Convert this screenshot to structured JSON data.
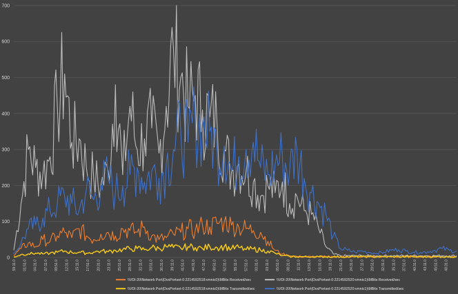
{
  "chart_data": {
    "type": "line",
    "title": "",
    "xlabel": "",
    "ylabel": "",
    "ylim": [
      0,
      700
    ],
    "yticks": [
      0,
      100,
      200,
      300,
      400,
      500,
      600,
      700
    ],
    "grid": true,
    "legend_position": "bottom",
    "background": "#424242",
    "x_tick_labels": [
      "59:11.0",
      "01:51.0",
      "04:31.0",
      "07:11.0",
      "09:51.0",
      "12:31.0",
      "15:11.0",
      "17:51.0",
      "20:31.0",
      "23:11.0",
      "25:51.0",
      "28:31.0",
      "31:11.0",
      "33:51.0",
      "36:31.0",
      "39:11.0",
      "41:51.0",
      "44:31.0",
      "47:11.0",
      "49:51.0",
      "52:31.0",
      "55:11.0",
      "57:51.0",
      "00:31.0",
      "03:11.0",
      "05:51.0",
      "08:31.0",
      "11:11.0",
      "13:51.0",
      "16:31.0",
      "19:11.0",
      "21:51.0",
      "24:31.0",
      "27:11.0",
      "29:51.0",
      "32:31.0",
      "35:11.0",
      "37:51.0",
      "40:31.0",
      "43:11.0",
      "45:51.0",
      "48:31.0"
    ],
    "series": [
      {
        "name": "\\\\VDI-20\\Network Port(DvsPortset-0:2214592518:vmnic0)\\MBits Received/sec",
        "color": "#f07f2f",
        "values": [
          5,
          25,
          40,
          30,
          50,
          45,
          60,
          70,
          55,
          80,
          60,
          50,
          65,
          70,
          60,
          80,
          75,
          70,
          85,
          60,
          50,
          55,
          65,
          70,
          80,
          75,
          90,
          85,
          95,
          100,
          90,
          85,
          80,
          75,
          70,
          45,
          20,
          10,
          5,
          3,
          2,
          2,
          2,
          2,
          2,
          2,
          2,
          2,
          2,
          2,
          2,
          2,
          2,
          2,
          2,
          2,
          2,
          2,
          2,
          2,
          2,
          2
        ]
      },
      {
        "name": "\\\\VDI-20\\Network Port(DvsPortset-0:2214592520:vmnic1)\\MBits Received/sec",
        "color": "#bdbdbd",
        "values": [
          20,
          150,
          300,
          250,
          230,
          280,
          420,
          510,
          320,
          330,
          250,
          220,
          200,
          240,
          480,
          230,
          420,
          300,
          330,
          360,
          290,
          420,
          580,
          500,
          420,
          450,
          410,
          390,
          370,
          300,
          240,
          260,
          240,
          210,
          170,
          200,
          180,
          210,
          150,
          170,
          130,
          120,
          80,
          30,
          10,
          5,
          5,
          5,
          5,
          5,
          5,
          5,
          5,
          5,
          5,
          5,
          5,
          5,
          5,
          5,
          5,
          5
        ]
      },
      {
        "name": "\\\\VDI-20\\Network Port(DvsPortset-0:2214592518:vmnic0)\\MBits Transmitted/sec",
        "color": "#f2c71c",
        "values": [
          2,
          8,
          10,
          12,
          10,
          12,
          15,
          18,
          14,
          15,
          12,
          15,
          18,
          16,
          20,
          22,
          24,
          25,
          22,
          28,
          25,
          30,
          28,
          26,
          30,
          28,
          25,
          30,
          28,
          30,
          25,
          28,
          22,
          24,
          20,
          18,
          12,
          5,
          3,
          2,
          2,
          2,
          2,
          2,
          2,
          2,
          2,
          2,
          2,
          2,
          2,
          2,
          2,
          2,
          2,
          2,
          2,
          2,
          2,
          2,
          2,
          2
        ]
      },
      {
        "name": "\\\\VDI-20\\Network Port(DvsPortset-0:2214592520:vmnic1)\\MBits Transmitted/sec",
        "color": "#3f71c8",
        "values": [
          10,
          40,
          80,
          90,
          110,
          130,
          150,
          170,
          150,
          130,
          190,
          160,
          200,
          220,
          180,
          200,
          230,
          250,
          210,
          240,
          220,
          260,
          300,
          350,
          320,
          380,
          360,
          350,
          300,
          310,
          240,
          280,
          300,
          320,
          250,
          230,
          260,
          280,
          240,
          300,
          220,
          180,
          150,
          120,
          60,
          25,
          20,
          15,
          18,
          14,
          12,
          15,
          20,
          22,
          18,
          15,
          14,
          16,
          20,
          25,
          20,
          18
        ]
      }
    ]
  }
}
